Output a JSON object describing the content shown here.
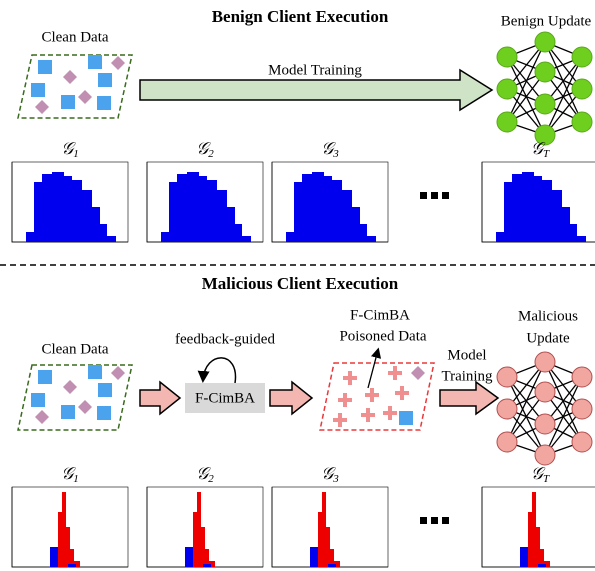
{
  "benign": {
    "title": "Benign Client Execution",
    "data_label": "Clean Data",
    "arrow_label": "Model Training",
    "update_label": "Benign Update",
    "graphs": [
      {
        "symbol": "𝒢",
        "sub": "1"
      },
      {
        "symbol": "𝒢",
        "sub": "2"
      },
      {
        "symbol": "𝒢",
        "sub": "3"
      },
      {
        "symbol": "𝒢",
        "sub": "T"
      }
    ]
  },
  "malicious": {
    "title": "Malicious Client Execution",
    "data_label": "Clean Data",
    "loop_label": "feedback-guided",
    "attack_box": "F-CimBA",
    "poisoned_label": [
      "F-CimBA",
      "Poisoned Data"
    ],
    "arrow_label": [
      "Model",
      "Training"
    ],
    "update_label": [
      "Malicious",
      "Update"
    ],
    "graphs": [
      {
        "symbol": "𝒢",
        "sub": "1"
      },
      {
        "symbol": "𝒢",
        "sub": "2"
      },
      {
        "symbol": "𝒢",
        "sub": "3"
      },
      {
        "symbol": "𝒢",
        "sub": "T"
      }
    ]
  }
}
